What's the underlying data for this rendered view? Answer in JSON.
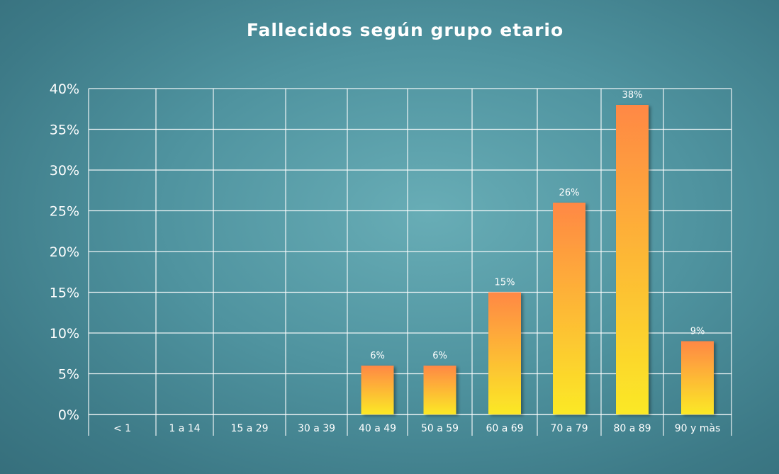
{
  "chart_data": {
    "type": "bar",
    "title": "Fallecidos según grupo etario",
    "xlabel": "",
    "ylabel": "",
    "categories": [
      "< 1",
      "1 a 14",
      "15 a 29",
      "30 a 39",
      "40 a 49",
      "50 a 59",
      "60 a 69",
      "70 a 79",
      "80 a 89",
      "90 y màs"
    ],
    "values": [
      null,
      null,
      null,
      null,
      6,
      6,
      15,
      26,
      38,
      9
    ],
    "data_labels": [
      "",
      "",
      "",
      "",
      "6%",
      "6%",
      "15%",
      "26%",
      "38%",
      "9%"
    ],
    "ylim": [
      0,
      40
    ],
    "yticks": [
      0,
      5,
      10,
      15,
      20,
      25,
      30,
      35,
      40
    ],
    "ytick_labels": [
      "0%",
      "5%",
      "10%",
      "15%",
      "20%",
      "25%",
      "30%",
      "35%",
      "40%"
    ],
    "grid": true,
    "legend": "none",
    "colors": {
      "bar_top": "#ff8845",
      "bar_bottom": "#fbe926",
      "grid": "#ffffff",
      "text": "#ffffff"
    }
  }
}
